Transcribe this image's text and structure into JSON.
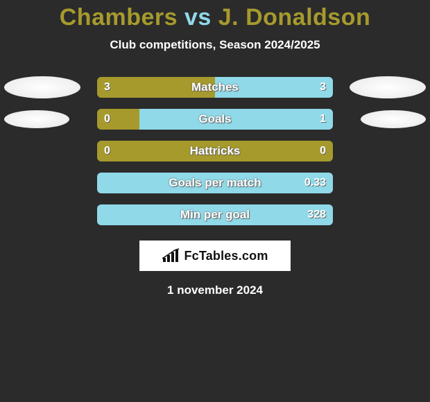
{
  "title": {
    "player1": "Chambers",
    "vs": "vs",
    "player2": "J. Donaldson",
    "player1_color": "#a69a2d",
    "vs_color": "#8fd9e8",
    "player2_color": "#a69a2d"
  },
  "subtitle": "Club competitions, Season 2024/2025",
  "colors": {
    "left": "#a69a2d",
    "right": "#8fd9e8",
    "bg": "#2b2b2b"
  },
  "rows": [
    {
      "label": "Matches",
      "left_val": "3",
      "right_val": "3",
      "left_pct": 50,
      "right_pct": 50,
      "show_ovals": true,
      "oval_size": "lg"
    },
    {
      "label": "Goals",
      "left_val": "0",
      "right_val": "1",
      "left_pct": 18,
      "right_pct": 82,
      "show_ovals": true,
      "oval_size": "sm"
    },
    {
      "label": "Hattricks",
      "left_val": "0",
      "right_val": "0",
      "left_pct": 100,
      "right_pct": 0,
      "show_ovals": false
    },
    {
      "label": "Goals per match",
      "left_val": "",
      "right_val": "0.33",
      "left_pct": 0,
      "right_pct": 100,
      "show_ovals": false
    },
    {
      "label": "Min per goal",
      "left_val": "",
      "right_val": "328",
      "left_pct": 0,
      "right_pct": 100,
      "show_ovals": false
    }
  ],
  "brand": "FcTables.com",
  "date": "1 november 2024",
  "bar": {
    "height": 30,
    "radius": 6,
    "label_fontsize": 17,
    "val_fontsize": 16
  }
}
